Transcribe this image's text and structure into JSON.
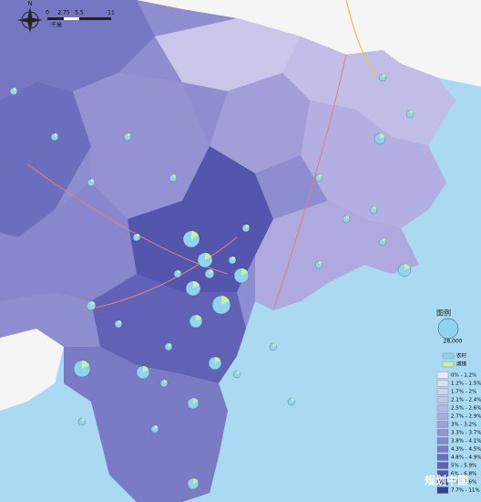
{
  "compass": "N",
  "scale_bar": {
    "labels": [
      "0",
      "2.75",
      "5.5",
      "11"
    ],
    "unit": "千米"
  },
  "legend": {
    "title": "图例",
    "size_label": "28,000",
    "items": [
      {
        "label": "农村",
        "color": "#8fd3f2"
      },
      {
        "label": "城镇",
        "color": "#c8f0a0"
      }
    ],
    "classes": [
      {
        "label": "0% - 1.2%",
        "color": "#eceaf7"
      },
      {
        "label": "1.2% - 1.5%",
        "color": "#e0ddf2"
      },
      {
        "label": "1.7% - 2%",
        "color": "#d3d0ee"
      },
      {
        "label": "2.1% - 2.4%",
        "color": "#c6c3e9"
      },
      {
        "label": "2.5% - 2.6%",
        "color": "#bab6e4"
      },
      {
        "label": "2.7% - 2.9%",
        "color": "#aeaade"
      },
      {
        "label": "3% - 3.2%",
        "color": "#a29ed8"
      },
      {
        "label": "3.3% - 3.7%",
        "color": "#9592d2"
      },
      {
        "label": "3.8% - 4.1%",
        "color": "#8886cc"
      },
      {
        "label": "4.3% - 4.5%",
        "color": "#7b7ac5"
      },
      {
        "label": "4.8% - 4.9%",
        "color": "#6e6ebe"
      },
      {
        "label": "5% - 5.9%",
        "color": "#6162b6"
      },
      {
        "label": "6% - 6.8%",
        "color": "#5456ad"
      },
      {
        "label": "7% - 7.6%",
        "color": "#474aa3"
      },
      {
        "label": "7.7% - 11%",
        "color": "#3a3e98"
      }
    ]
  },
  "watermark": "规划中国"
}
